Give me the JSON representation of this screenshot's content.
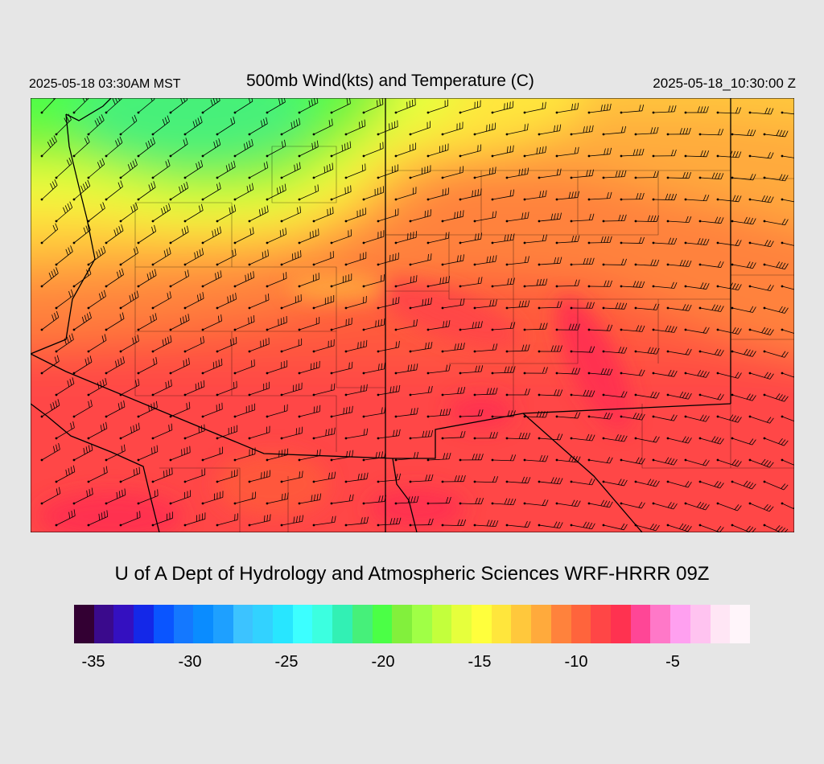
{
  "header": {
    "local_time": "2025-05-18 03:30AM MST",
    "title": "500mb Wind(kts) and Temperature (C)",
    "utc_time": "2025-05-18_10:30:00 Z"
  },
  "footer": {
    "credit": "U of A Dept of Hydrology and Atmospheric Sciences WRF-HRRR 09Z"
  },
  "colorbar": {
    "colors": [
      "#330033",
      "#3a0a8c",
      "#3410c0",
      "#1428e8",
      "#0a55ff",
      "#1478ff",
      "#0a8cff",
      "#1ea0ff",
      "#3cc3ff",
      "#32d2ff",
      "#28e6ff",
      "#3cffff",
      "#3cffe0",
      "#32f0b4",
      "#46f07a",
      "#4bff46",
      "#82f03c",
      "#a0ff46",
      "#c3ff3c",
      "#e6ff3c",
      "#ffff3c",
      "#ffe63c",
      "#ffc83c",
      "#ffaa3c",
      "#ff823c",
      "#ff643c",
      "#ff4646",
      "#ff3250",
      "#ff4696",
      "#ff78c8",
      "#ffa0f0",
      "#ffc3f0",
      "#ffe6f5",
      "#fff5fa"
    ],
    "tick_labels": [
      "-35",
      "-30",
      "-25",
      "-20",
      "-15",
      "-10",
      "-5"
    ],
    "tick_values": [
      -35,
      -30,
      -25,
      -20,
      -15,
      -10,
      -5
    ],
    "min": -36,
    "max": -1
  },
  "map": {
    "variable": "500mb temperature",
    "units": "C",
    "wind_units": "kts",
    "background_color": "#ff5a3c"
  }
}
